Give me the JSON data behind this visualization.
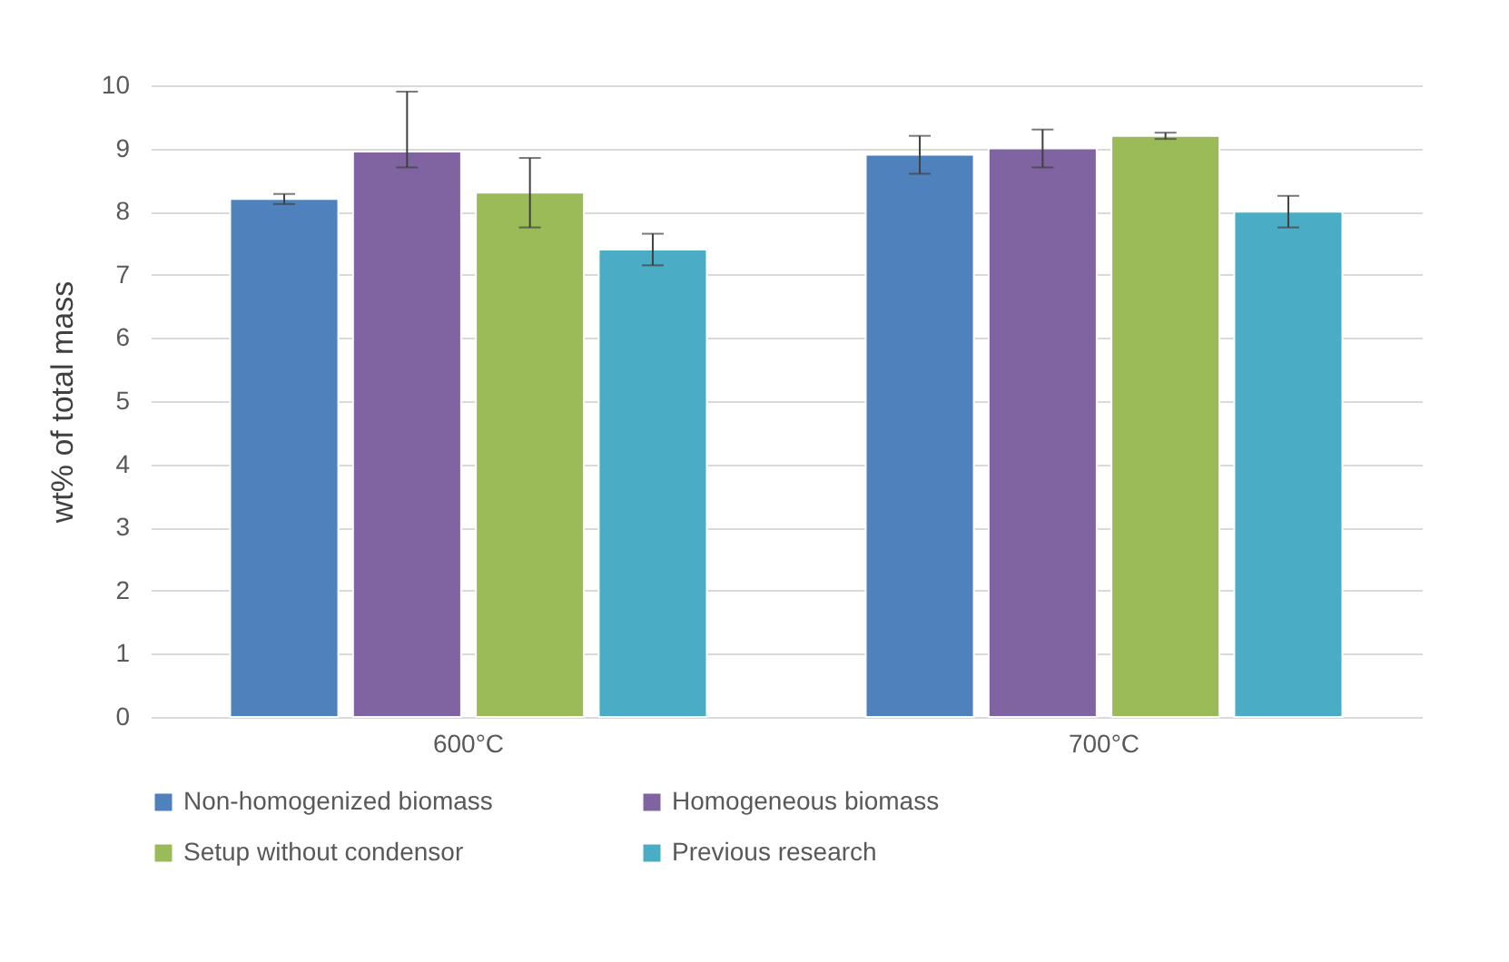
{
  "chart_data": {
    "type": "bar",
    "ylabel": "wt% of total mass",
    "categories": [
      "600°C",
      "700°C"
    ],
    "series": [
      {
        "name": "Non-homogenized biomass",
        "color": "#4f81bd",
        "values": [
          8.2,
          8.9
        ],
        "errors": [
          0.08,
          0.3
        ]
      },
      {
        "name": "Homogeneous biomass",
        "color": "#8064a2",
        "values": [
          8.95,
          9.0
        ],
        "errors": [
          [
            8.7,
            9.9
          ],
          0.3
        ]
      },
      {
        "name": "Setup without condensor",
        "color": "#9bbb59",
        "values": [
          8.3,
          9.2
        ],
        "errors": [
          0.55,
          0.05
        ]
      },
      {
        "name": "Previous research",
        "color": "#4bacc6",
        "values": [
          7.4,
          8.0
        ],
        "errors": [
          0.25,
          0.25
        ]
      }
    ],
    "ylim": [
      0,
      10
    ],
    "yticks": [
      0,
      1,
      2,
      3,
      4,
      5,
      6,
      7,
      8,
      9,
      10
    ],
    "grid": "y",
    "legend": "bottom"
  }
}
